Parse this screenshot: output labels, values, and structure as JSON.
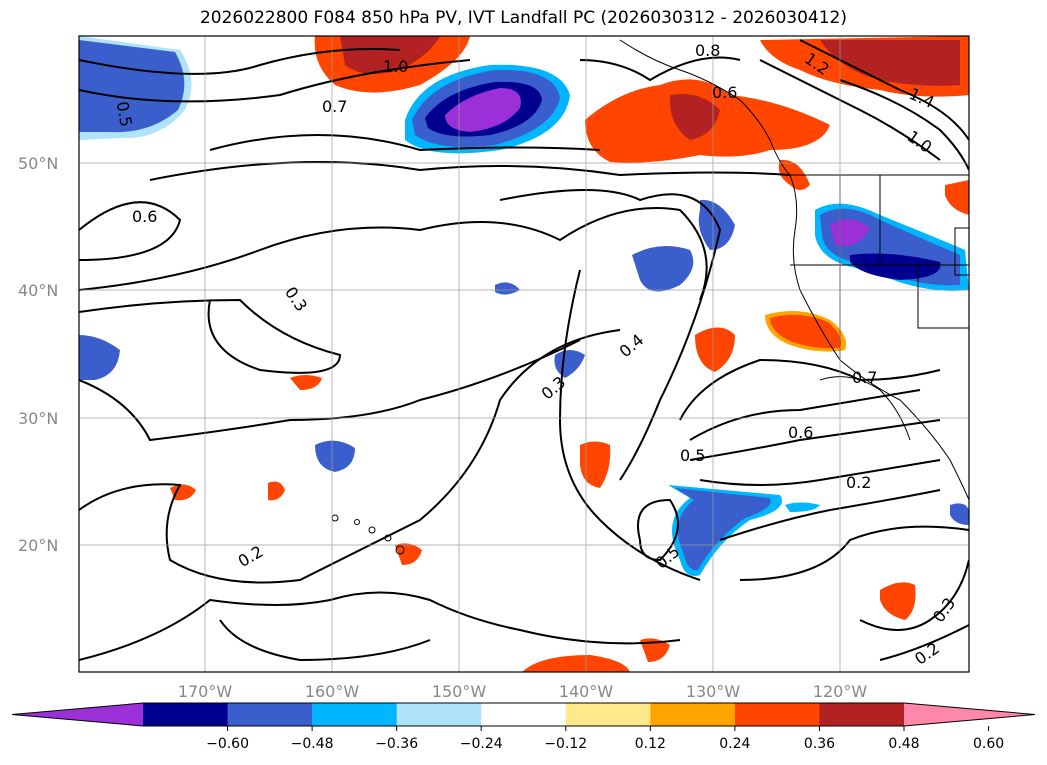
{
  "title": "2026022800 F084 850 hPa PV, IVT Landfall PC (2026030312 - 2026030412)",
  "lat_labels": [
    "50°N",
    "40°N",
    "30°N",
    "20°N"
  ],
  "lon_labels": [
    "170°W",
    "160°W",
    "150°W",
    "140°W",
    "130°W",
    "120°W"
  ],
  "colorbar": {
    "colors": [
      "#9b30d9",
      "#000090",
      "#3a5fcd",
      "#00b7ff",
      "#aee3fa",
      "#ffffff",
      "#ffe98a",
      "#ffa500",
      "#ff4500",
      "#b22222",
      "#ff88aa"
    ],
    "ticks": [
      "−0.60",
      "−0.48",
      "−0.36",
      "−0.24",
      "−0.12",
      "0.12",
      "0.24",
      "0.36",
      "0.48",
      "0.60"
    ]
  },
  "contour_labels": [
    "0.5",
    "0.7",
    "0.8",
    "1.0",
    "0.6",
    "0.3",
    "0.4",
    "0.3",
    "0.6",
    "0.5",
    "0.2",
    "0.2",
    "0.5",
    "0.3",
    "0.2",
    "1.4",
    "1.0",
    "0.7",
    "0.6",
    "1.2"
  ]
}
